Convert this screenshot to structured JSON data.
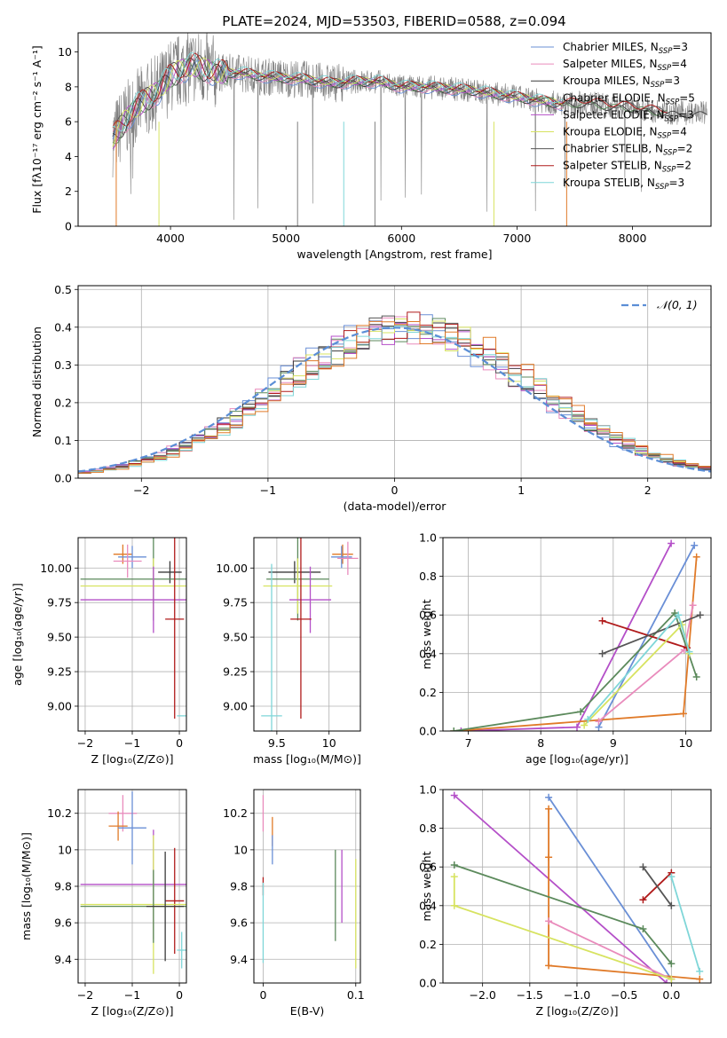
{
  "figure": {
    "title": "PLATE=2024, MJD=53503, FIBERID=0588, z=0.094"
  },
  "chart_data": [
    {
      "type": "line",
      "id": "spectrum",
      "xlabel": "wavelength [Angstrom, rest frame]",
      "ylabel": "Flux [fλ10⁻¹⁷ erg cm⁻² s⁻¹ A⁻¹]",
      "xlim": [
        3200,
        8680
      ],
      "ylim": [
        0,
        11.1
      ],
      "xticks": [
        4000,
        5000,
        6000,
        7000,
        8000
      ],
      "yticks": [
        0,
        2,
        4,
        6,
        8,
        10
      ],
      "legend_position": "right",
      "data_envelope": {
        "x": [
          3500,
          3600,
          3700,
          3800,
          3900,
          4000,
          4100,
          4200,
          4300,
          4400,
          4500,
          4600,
          4800,
          5000,
          5200,
          5400,
          5600,
          5800,
          6000,
          6200,
          6400,
          6600,
          6800,
          7000,
          7200,
          7400,
          7600,
          7800,
          8000,
          8200,
          8400
        ],
        "y": [
          5.0,
          6.0,
          6.8,
          7.3,
          7.8,
          8.6,
          9.0,
          9.2,
          9.0,
          8.8,
          8.8,
          8.8,
          8.6,
          8.5,
          8.4,
          8.2,
          8.3,
          8.3,
          8.0,
          8.0,
          7.9,
          7.8,
          7.6,
          7.4,
          7.2,
          7.0,
          7.1,
          6.9,
          6.8,
          6.6,
          6.5
        ]
      },
      "series": [
        {
          "name": "Chabrier MILES, N",
          "sub": "SSP",
          "suffix": "=3",
          "color": "#6a8fd6"
        },
        {
          "name": "Salpeter MILES, N",
          "sub": "SSP",
          "suffix": "=4",
          "color": "#e98bbc"
        },
        {
          "name": "Kroupa MILES, N",
          "sub": "SSP",
          "suffix": "=3",
          "color": "#3a3a3a"
        },
        {
          "name": "Chabrier ELODIE, N",
          "sub": "SSP",
          "suffix": "=5",
          "color": "#5c8a5c"
        },
        {
          "name": "Salpeter ELODIE, N",
          "sub": "SSP",
          "suffix": "=3",
          "color": "#b44fc8"
        },
        {
          "name": "Kroupa ELODIE, N",
          "sub": "SSP",
          "suffix": "=4",
          "color": "#d7e360"
        },
        {
          "name": "Chabrier STELIB, N",
          "sub": "SSP",
          "suffix": "=2",
          "color": "#555555"
        },
        {
          "name": "Salpeter STELIB, N",
          "sub": "SSP",
          "suffix": "=2",
          "color": "#b01b1b"
        },
        {
          "name": "Kroupa STELIB, N",
          "sub": "SSP",
          "suffix": "=3",
          "color": "#7fd6d8"
        }
      ]
    },
    {
      "type": "histogram",
      "id": "residuals",
      "xlabel": "(data-model)/error",
      "ylabel": "Normed distribution",
      "xlim": [
        -2.5,
        2.5
      ],
      "ylim": [
        0,
        0.51
      ],
      "xticks": [
        -2,
        -1,
        0,
        1,
        2
      ],
      "yticks": [
        0.0,
        0.1,
        0.2,
        0.3,
        0.4,
        0.5
      ],
      "grid": true,
      "legend": "𝒩(0, 1)",
      "legend_position": "top-right",
      "bins": 50,
      "bin_colors": [
        "#6a8fd6",
        "#e98bbc",
        "#3a3a3a",
        "#5c8a5c",
        "#b44fc8",
        "#d7e360",
        "#555555",
        "#b01b1b",
        "#7fd6d8",
        "#e07a28"
      ],
      "reference_curve": {
        "name": "normal",
        "mean": 0,
        "sigma": 1,
        "color": "#5b8ed6"
      }
    },
    {
      "type": "errorbar",
      "id": "age-vs-Z",
      "xlabel": "Z [log₁₀(Z/Z⊙)]",
      "ylabel": "age  [log₁₀(age/yr)]",
      "xlim": [
        -2.15,
        0.15
      ],
      "ylim": [
        8.82,
        10.22
      ],
      "xticks": [
        -2,
        -1,
        0
      ],
      "yticks": [
        9.0,
        9.25,
        9.5,
        9.75,
        10.0
      ],
      "ytick_labels": [
        "9.00",
        "9.25",
        "9.50",
        "9.75",
        "10.00"
      ],
      "grid": true,
      "points": [
        {
          "x": -1.2,
          "xerr": 0.2,
          "y": 10.1,
          "yerr": 0.07,
          "color": "#e07a28"
        },
        {
          "x": -1.0,
          "xerr": 0.3,
          "y": 10.08,
          "yerr": 0.08,
          "color": "#6a8fd6"
        },
        {
          "x": -1.1,
          "xerr": 0.3,
          "y": 10.05,
          "yerr": 0.12,
          "color": "#e98bbc"
        },
        {
          "x": -0.2,
          "xerr": 0.25,
          "y": 9.97,
          "yerr": 0.08,
          "color": "#3a3a3a"
        },
        {
          "x": -0.55,
          "xerr": 1.55,
          "y": 9.92,
          "yerr": 0.3,
          "color": "#5c8a5c"
        },
        {
          "x": -0.55,
          "xerr": 1.55,
          "y": 9.87,
          "yerr": 0.2,
          "color": "#d7e360"
        },
        {
          "x": -0.55,
          "xerr": 1.55,
          "y": 9.77,
          "yerr": 0.24,
          "color": "#b44fc8"
        },
        {
          "x": -0.1,
          "xerr": 0.2,
          "y": 9.63,
          "yerr": 0.72,
          "color": "#b01b1b"
        },
        {
          "x": 0.05,
          "xerr": 0.1,
          "y": 8.93,
          "yerr": 0.0,
          "color": "#7fd6d8"
        }
      ]
    },
    {
      "type": "errorbar",
      "id": "age-vs-mass",
      "xlabel": "mass [log₁₀(M/M⊙)]",
      "ylabel": "",
      "xlim": [
        9.28,
        10.3
      ],
      "ylim": [
        8.82,
        10.22
      ],
      "xticks": [
        9.5,
        10.0
      ],
      "yticks": [
        9.0,
        9.25,
        9.5,
        9.75,
        10.0
      ],
      "ytick_labels": [
        "9.00",
        "9.25",
        "9.50",
        "9.75",
        "10.00"
      ],
      "grid": true,
      "points": [
        {
          "x": 10.13,
          "xerr": 0.1,
          "y": 10.1,
          "yerr": 0.07,
          "color": "#e07a28"
        },
        {
          "x": 10.12,
          "xerr": 0.1,
          "y": 10.08,
          "yerr": 0.08,
          "color": "#6a8fd6"
        },
        {
          "x": 10.18,
          "xerr": 0.1,
          "y": 10.07,
          "yerr": 0.12,
          "color": "#e98bbc"
        },
        {
          "x": 9.67,
          "xerr": 0.25,
          "y": 9.97,
          "yerr": 0.08,
          "color": "#3a3a3a"
        },
        {
          "x": 9.7,
          "xerr": 0.3,
          "y": 9.92,
          "yerr": 0.3,
          "color": "#5c8a5c"
        },
        {
          "x": 9.7,
          "xerr": 0.33,
          "y": 9.87,
          "yerr": 0.2,
          "color": "#d7e360"
        },
        {
          "x": 9.82,
          "xerr": 0.2,
          "y": 9.77,
          "yerr": 0.24,
          "color": "#b44fc8"
        },
        {
          "x": 9.73,
          "xerr": 0.1,
          "y": 9.63,
          "yerr": 0.72,
          "color": "#b01b1b"
        },
        {
          "x": 9.45,
          "xerr": 0.1,
          "y": 8.93,
          "yerr": 1.1,
          "color": "#7fd6d8"
        }
      ]
    },
    {
      "type": "line",
      "id": "weight-vs-age",
      "xlabel": "age  [log₁₀(age/yr)]",
      "ylabel": "mass weight",
      "xlim": [
        6.65,
        10.35
      ],
      "ylim": [
        0,
        1.0
      ],
      "xticks": [
        7,
        8,
        9,
        10
      ],
      "yticks": [
        0.0,
        0.2,
        0.4,
        0.6,
        0.8,
        1.0
      ],
      "grid": true,
      "series": [
        {
          "color": "#b44fc8",
          "x": [
            6.9,
            8.5,
            9.8
          ],
          "y": [
            0.0,
            0.02,
            0.97
          ]
        },
        {
          "color": "#6a8fd6",
          "x": [
            8.8,
            10.12
          ],
          "y": [
            0.02,
            0.96
          ]
        },
        {
          "color": "#e07a28",
          "x": [
            6.8,
            9.97,
            10.15
          ],
          "y": [
            0.0,
            0.09,
            0.9
          ]
        },
        {
          "color": "#e98bbc",
          "x": [
            8.8,
            9.98,
            10.1
          ],
          "y": [
            0.05,
            0.42,
            0.65
          ]
        },
        {
          "color": "#5c8a5c",
          "x": [
            6.8,
            8.55,
            9.85,
            10.15
          ],
          "y": [
            0.0,
            0.1,
            0.61,
            0.28
          ]
        },
        {
          "color": "#b01b1b",
          "x": [
            8.85,
            10.02
          ],
          "y": [
            0.57,
            0.43
          ]
        },
        {
          "color": "#555555",
          "x": [
            8.85,
            10.2
          ],
          "y": [
            0.4,
            0.6
          ]
        },
        {
          "color": "#d7e360",
          "x": [
            8.6,
            9.95,
            10.05
          ],
          "y": [
            0.03,
            0.55,
            0.4
          ]
        },
        {
          "color": "#7fd6d8",
          "x": [
            8.65,
            9.9,
            10.05
          ],
          "y": [
            0.06,
            0.6,
            0.41
          ]
        }
      ]
    },
    {
      "type": "errorbar",
      "id": "mass-vs-Z",
      "xlabel": "Z [log₁₀(Z/Z⊙)]",
      "ylabel": "mass [log₁₀(M/M⊙)]",
      "xlim": [
        -2.15,
        0.15
      ],
      "ylim": [
        9.27,
        10.33
      ],
      "xticks": [
        -2,
        -1,
        0
      ],
      "yticks": [
        9.4,
        9.6,
        9.8,
        10.0,
        10.2
      ],
      "grid": true,
      "points": [
        {
          "x": -1.2,
          "xerr": 0.3,
          "y": 10.2,
          "yerr": 0.1,
          "color": "#e98bbc"
        },
        {
          "x": -1.3,
          "xerr": 0.2,
          "y": 10.13,
          "yerr": 0.08,
          "color": "#e07a28"
        },
        {
          "x": -1.0,
          "xerr": 0.3,
          "y": 10.12,
          "yerr": 0.2,
          "color": "#6a8fd6"
        },
        {
          "x": -0.55,
          "xerr": 1.55,
          "y": 9.81,
          "yerr": 0.3,
          "color": "#b44fc8"
        },
        {
          "x": -0.1,
          "xerr": 0.2,
          "y": 9.72,
          "yerr": 0.29,
          "color": "#b01b1b"
        },
        {
          "x": -0.55,
          "xerr": 1.55,
          "y": 9.7,
          "yerr": 0.38,
          "color": "#d7e360"
        },
        {
          "x": -0.55,
          "xerr": 1.55,
          "y": 9.69,
          "yerr": 0.2,
          "color": "#5c8a5c"
        },
        {
          "x": -0.3,
          "xerr": 0.4,
          "y": 9.69,
          "yerr": 0.3,
          "color": "#3a3a3a"
        },
        {
          "x": 0.05,
          "xerr": 0.1,
          "y": 9.45,
          "yerr": 0.1,
          "color": "#7fd6d8"
        }
      ]
    },
    {
      "type": "errorbar",
      "id": "mass-vs-EBV",
      "xlabel": "E(B-V)",
      "ylabel": "",
      "xlim": [
        -0.01,
        0.105
      ],
      "ylim": [
        9.27,
        10.33
      ],
      "xticks": [
        0.0,
        0.1
      ],
      "yticks": [
        9.4,
        9.6,
        9.8,
        10.0,
        10.2
      ],
      "grid": true,
      "points": [
        {
          "x": 0.0,
          "xerr": 0,
          "y": 10.2,
          "yerr": 0.1,
          "color": "#e98bbc"
        },
        {
          "x": 0.01,
          "xerr": 0,
          "y": 10.1,
          "yerr": 0.08,
          "color": "#e07a28"
        },
        {
          "x": 0.01,
          "xerr": 0,
          "y": 10.0,
          "yerr": 0.08,
          "color": "#6a8fd6"
        },
        {
          "x": 0.0,
          "xerr": 0,
          "y": 9.8,
          "yerr": 0.05,
          "color": "#b01b1b"
        },
        {
          "x": 0.0,
          "xerr": 0,
          "y": 9.6,
          "yerr": 0.22,
          "color": "#7fd6d8"
        },
        {
          "x": 0.085,
          "xerr": 0,
          "y": 9.8,
          "yerr": 0.2,
          "color": "#b44fc8"
        },
        {
          "x": 0.078,
          "xerr": 0,
          "y": 9.75,
          "yerr": 0.25,
          "color": "#5c8a5c"
        },
        {
          "x": 0.1,
          "xerr": 0,
          "y": 9.65,
          "yerr": 0.3,
          "color": "#d7e360"
        }
      ]
    },
    {
      "type": "line",
      "id": "weight-vs-Z",
      "xlabel": "Z [log₁₀(Z/Z⊙)]",
      "ylabel": "mass weight",
      "xlim": [
        -2.42,
        0.42
      ],
      "ylim": [
        0,
        1.0
      ],
      "xticks": [
        -2.0,
        -1.5,
        -1.0,
        -0.5,
        0.0
      ],
      "xtick_labels": [
        "−2.0",
        "−1.5",
        "−1.0",
        "−0.5",
        "0.0"
      ],
      "yticks": [
        0.0,
        0.2,
        0.4,
        0.6,
        0.8,
        1.0
      ],
      "grid": true,
      "series": [
        {
          "color": "#b44fc8",
          "x": [
            -2.3,
            -0.05
          ],
          "y": [
            0.97,
            0.0
          ]
        },
        {
          "color": "#6a8fd6",
          "x": [
            -1.3,
            0.0
          ],
          "y": [
            0.96,
            0.02
          ]
        },
        {
          "color": "#e07a28",
          "x": [
            -1.3,
            -1.3,
            -1.3,
            0.3
          ],
          "y": [
            0.9,
            0.65,
            0.09,
            0.02
          ]
        },
        {
          "color": "#e98bbc",
          "x": [
            -1.3,
            0.0
          ],
          "y": [
            0.32,
            0.02
          ]
        },
        {
          "color": "#5c8a5c",
          "x": [
            -2.3,
            -0.3,
            0.0
          ],
          "y": [
            0.61,
            0.28,
            0.1
          ]
        },
        {
          "color": "#b01b1b",
          "x": [
            -0.3,
            0.0
          ],
          "y": [
            0.43,
            0.57
          ]
        },
        {
          "color": "#555555",
          "x": [
            -0.3,
            0.0
          ],
          "y": [
            0.6,
            0.4
          ]
        },
        {
          "color": "#d7e360",
          "x": [
            -2.3,
            -2.3,
            0.0
          ],
          "y": [
            0.55,
            0.4,
            0.02
          ]
        },
        {
          "color": "#7fd6d8",
          "x": [
            0.0,
            0.3
          ],
          "y": [
            0.55,
            0.06
          ]
        }
      ]
    }
  ]
}
